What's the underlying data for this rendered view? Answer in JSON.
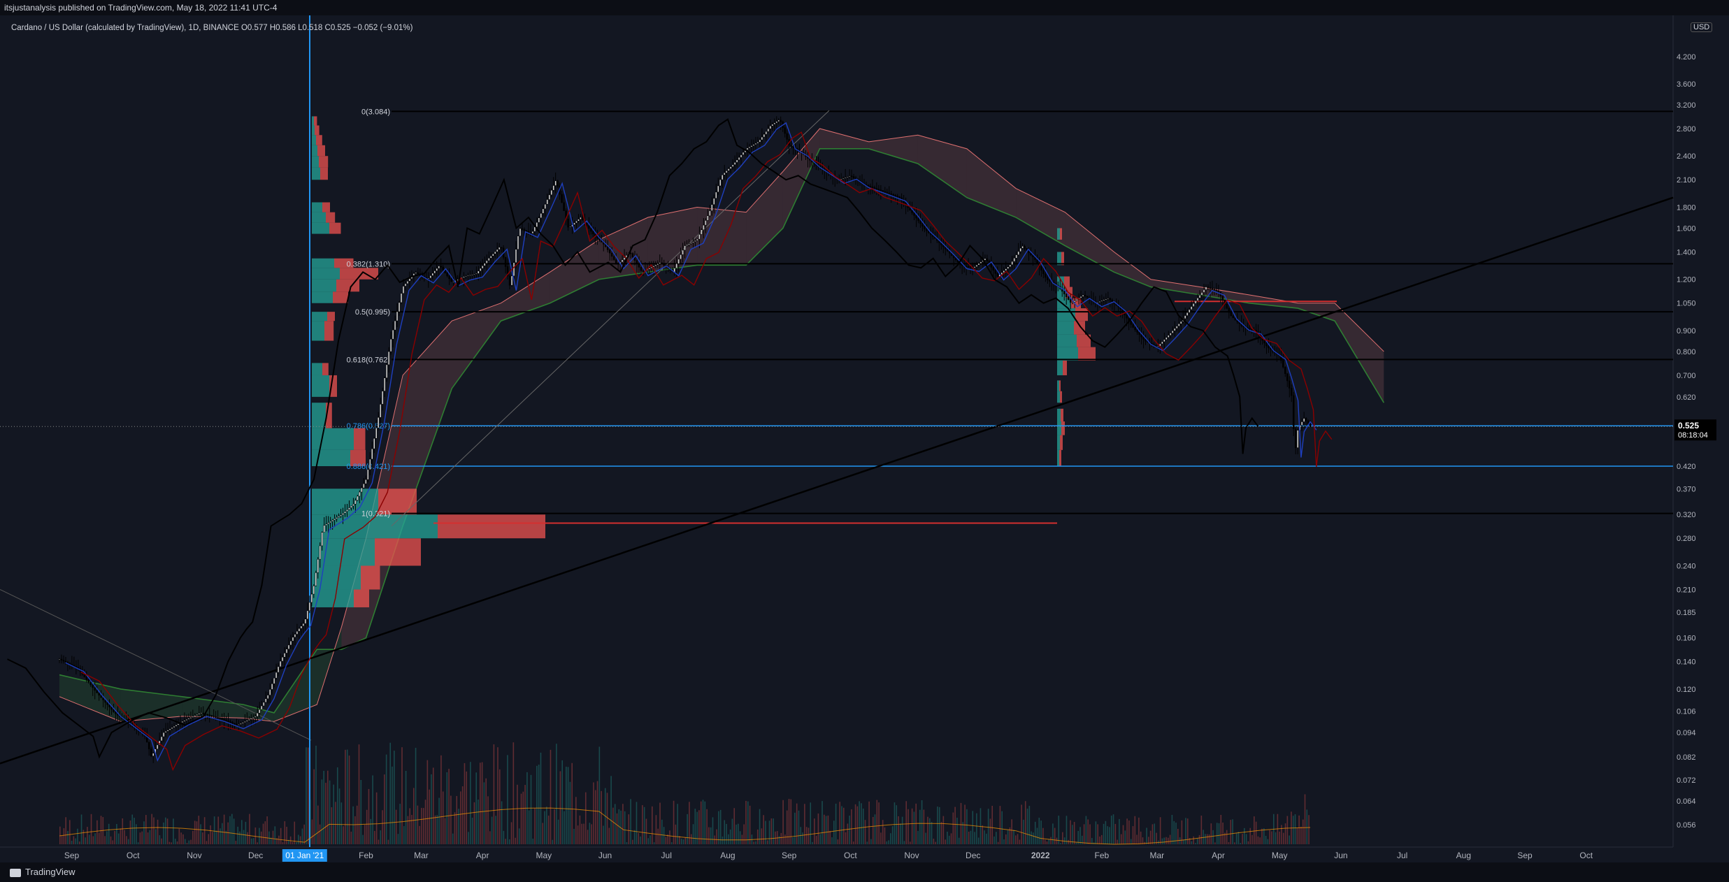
{
  "header": {
    "published": "itsjustanalysis published on TradingView.com, May 18, 2022 11:41 UTC-4",
    "symbol_line": "Cardano / US Dollar (calculated by TradingView), 1D, BINANCE  O0.577  H0.586  L0.518  C0.525  −0.052 (−9.01%)",
    "currency": "USD"
  },
  "footer": {
    "brand": "TradingView"
  },
  "colors": {
    "background": "#131722",
    "price": "#000000",
    "up_volume": "#26a69a",
    "down_volume": "#ef5350",
    "cloud_bull": "#4caf50",
    "cloud_bear": "#f28b8b",
    "fib_blue": "#2196f3",
    "kijun": "#8b0000",
    "tenkan": "#1e3fbf",
    "chikou": "#000000"
  },
  "chart_data": {
    "type": "candlestick",
    "scale": "log",
    "y_ticks": [
      4.2,
      3.6,
      3.2,
      2.8,
      2.4,
      2.1,
      1.8,
      1.6,
      1.4,
      1.2,
      1.05,
      0.9,
      0.8,
      0.7,
      0.62,
      0.525,
      0.42,
      0.37,
      0.32,
      0.28,
      0.24,
      0.21,
      0.185,
      0.16,
      0.14,
      0.12,
      0.106,
      0.094,
      0.082,
      0.072,
      0.064,
      0.056
    ],
    "y_tick_labels": [
      "4.200",
      "3.600",
      "3.200",
      "2.800",
      "2.400",
      "2.100",
      "1.800",
      "1.600",
      "1.400",
      "1.200",
      "1.050",
      "0.900",
      "0.800",
      "0.700",
      "0.620",
      "0.525",
      "0.420",
      "0.370",
      "0.320",
      "0.280",
      "0.240",
      "0.210",
      "0.185",
      "0.160",
      "0.140",
      "0.120",
      "0.106",
      "0.094",
      "0.082",
      "0.072",
      "0.064",
      "0.056"
    ],
    "x_labels": [
      "Sep",
      "Oct",
      "Nov",
      "Dec",
      "01 Jan '21",
      "Feb",
      "Mar",
      "Apr",
      "May",
      "Jun",
      "Jul",
      "Aug",
      "Sep",
      "Oct",
      "Nov",
      "Dec",
      "2022",
      "Feb",
      "Mar",
      "Apr",
      "May",
      "Jun",
      "Jul",
      "Aug",
      "Sep",
      "Oct"
    ],
    "x_months_from_2020_09": [
      0.2,
      1.2,
      2.2,
      3.2,
      4.0,
      5.0,
      5.9,
      6.9,
      7.9,
      8.9,
      9.9,
      10.9,
      11.9,
      12.9,
      13.9,
      14.9,
      16.0,
      17.0,
      17.9,
      18.9,
      19.9,
      20.9,
      21.9,
      22.9,
      23.9,
      24.9
    ],
    "current_price": "0.525",
    "countdown": "08:18:04",
    "fib_levels": [
      {
        "label": "0(3.084)",
        "value": 3.084,
        "color": "#000000"
      },
      {
        "label": "0.382(1.310)",
        "value": 1.31,
        "color": "#000000"
      },
      {
        "label": "0.5(0.995)",
        "value": 1.0,
        "color": "#000000"
      },
      {
        "label": "0.618(0.762)",
        "value": 0.765,
        "color": "#000000"
      },
      {
        "label": "0.786(0.527)",
        "value": 0.527,
        "color": "#2196f3"
      },
      {
        "label": "0.886(0.421)",
        "value": 0.42,
        "color": "#2196f3"
      },
      {
        "label": "1(0.321)",
        "value": 0.322,
        "color": "#000000"
      }
    ],
    "price_path": [
      [
        0,
        0.142
      ],
      [
        0.3,
        0.135
      ],
      [
        0.6,
        0.118
      ],
      [
        0.9,
        0.105
      ],
      [
        1.2,
        0.097
      ],
      [
        1.4,
        0.092
      ],
      [
        1.5,
        0.082
      ],
      [
        1.7,
        0.094
      ],
      [
        2.0,
        0.1
      ],
      [
        2.3,
        0.105
      ],
      [
        2.6,
        0.102
      ],
      [
        2.9,
        0.098
      ],
      [
        3.2,
        0.103
      ],
      [
        3.4,
        0.116
      ],
      [
        3.6,
        0.14
      ],
      [
        3.8,
        0.16
      ],
      [
        3.9,
        0.168
      ],
      [
        4.0,
        0.175
      ],
      [
        4.15,
        0.215
      ],
      [
        4.3,
        0.3
      ],
      [
        4.45,
        0.31
      ],
      [
        4.6,
        0.32
      ],
      [
        4.8,
        0.34
      ],
      [
        5.0,
        0.39
      ],
      [
        5.2,
        0.55
      ],
      [
        5.4,
        0.85
      ],
      [
        5.6,
        1.15
      ],
      [
        5.8,
        1.25
      ],
      [
        6.0,
        1.2
      ],
      [
        6.2,
        1.3
      ],
      [
        6.4,
        1.18
      ],
      [
        6.6,
        1.22
      ],
      [
        6.8,
        1.24
      ],
      [
        7.0,
        1.35
      ],
      [
        7.2,
        1.45
      ],
      [
        7.35,
        1.15
      ],
      [
        7.5,
        1.6
      ],
      [
        7.7,
        1.55
      ],
      [
        7.9,
        1.8
      ],
      [
        8.1,
        2.1
      ],
      [
        8.3,
        1.6
      ],
      [
        8.5,
        1.7
      ],
      [
        8.7,
        1.55
      ],
      [
        8.9,
        1.45
      ],
      [
        9.1,
        1.3
      ],
      [
        9.3,
        1.4
      ],
      [
        9.5,
        1.25
      ],
      [
        9.8,
        1.32
      ],
      [
        10.0,
        1.25
      ],
      [
        10.2,
        1.45
      ],
      [
        10.4,
        1.5
      ],
      [
        10.6,
        1.75
      ],
      [
        10.8,
        2.15
      ],
      [
        11.0,
        2.3
      ],
      [
        11.2,
        2.5
      ],
      [
        11.4,
        2.6
      ],
      [
        11.6,
        2.85
      ],
      [
        11.75,
        2.95
      ],
      [
        11.9,
        2.55
      ],
      [
        12.1,
        2.45
      ],
      [
        12.3,
        2.3
      ],
      [
        12.5,
        2.2
      ],
      [
        12.7,
        2.1
      ],
      [
        12.9,
        2.15
      ],
      [
        13.1,
        2.05
      ],
      [
        13.3,
        2.0
      ],
      [
        13.5,
        1.95
      ],
      [
        13.7,
        1.9
      ],
      [
        13.9,
        1.75
      ],
      [
        14.1,
        1.6
      ],
      [
        14.3,
        1.5
      ],
      [
        14.5,
        1.4
      ],
      [
        14.7,
        1.3
      ],
      [
        14.9,
        1.28
      ],
      [
        15.1,
        1.35
      ],
      [
        15.3,
        1.22
      ],
      [
        15.5,
        1.3
      ],
      [
        15.7,
        1.45
      ],
      [
        15.9,
        1.35
      ],
      [
        16.1,
        1.2
      ],
      [
        16.3,
        1.15
      ],
      [
        16.5,
        1.05
      ],
      [
        16.7,
        1.1
      ],
      [
        16.9,
        1.05
      ],
      [
        17.1,
        1.08
      ],
      [
        17.3,
        1.02
      ],
      [
        17.5,
        0.92
      ],
      [
        17.7,
        0.85
      ],
      [
        17.9,
        0.82
      ],
      [
        18.1,
        0.88
      ],
      [
        18.3,
        0.95
      ],
      [
        18.5,
        1.05
      ],
      [
        18.7,
        1.15
      ],
      [
        18.9,
        1.12
      ],
      [
        19.1,
        0.98
      ],
      [
        19.3,
        0.92
      ],
      [
        19.5,
        0.9
      ],
      [
        19.7,
        0.82
      ],
      [
        19.9,
        0.78
      ],
      [
        20.0,
        0.7
      ],
      [
        20.1,
        0.62
      ],
      [
        20.15,
        0.45
      ],
      [
        20.2,
        0.52
      ],
      [
        20.3,
        0.55
      ],
      [
        20.4,
        0.525
      ]
    ],
    "volume_profile_left": [
      [
        0.19,
        0.21,
        60,
        20
      ],
      [
        0.21,
        0.24,
        70,
        25
      ],
      [
        0.24,
        0.28,
        90,
        60
      ],
      [
        0.28,
        0.32,
        180,
        140
      ],
      [
        0.32,
        0.37,
        95,
        50
      ],
      [
        0.42,
        0.46,
        55,
        20
      ],
      [
        0.46,
        0.52,
        60,
        15
      ],
      [
        0.52,
        0.6,
        20,
        8
      ],
      [
        0.62,
        0.7,
        25,
        10
      ],
      [
        0.7,
        0.75,
        15,
        8
      ],
      [
        0.85,
        0.95,
        18,
        12
      ],
      [
        0.95,
        1.0,
        22,
        10
      ],
      [
        1.05,
        1.12,
        30,
        20
      ],
      [
        1.12,
        1.2,
        35,
        30
      ],
      [
        1.2,
        1.28,
        40,
        50
      ],
      [
        1.28,
        1.35,
        32,
        25
      ],
      [
        1.55,
        1.65,
        25,
        15
      ],
      [
        1.65,
        1.75,
        20,
        12
      ],
      [
        1.75,
        1.85,
        15,
        10
      ],
      [
        2.1,
        2.25,
        12,
        10
      ],
      [
        2.25,
        2.4,
        10,
        12
      ],
      [
        2.4,
        2.55,
        8,
        10
      ],
      [
        2.55,
        2.7,
        6,
        8
      ],
      [
        2.7,
        2.85,
        4,
        6
      ],
      [
        2.85,
        3.0,
        3,
        4
      ]
    ],
    "volume_profile_right": [
      [
        0.42,
        0.46,
        3,
        3
      ],
      [
        0.46,
        0.5,
        4,
        4
      ],
      [
        0.5,
        0.54,
        6,
        5
      ],
      [
        0.54,
        0.58,
        5,
        4
      ],
      [
        0.6,
        0.64,
        4,
        3
      ],
      [
        0.64,
        0.68,
        3,
        2
      ],
      [
        0.7,
        0.76,
        8,
        6
      ],
      [
        0.76,
        0.82,
        30,
        25
      ],
      [
        0.82,
        0.88,
        28,
        20
      ],
      [
        0.88,
        0.95,
        24,
        16
      ],
      [
        0.95,
        1.02,
        26,
        18
      ],
      [
        1.02,
        1.08,
        20,
        14
      ],
      [
        1.08,
        1.15,
        12,
        10
      ],
      [
        1.15,
        1.22,
        10,
        8
      ],
      [
        1.3,
        1.4,
        6,
        4
      ],
      [
        1.5,
        1.6,
        4,
        3
      ]
    ]
  }
}
